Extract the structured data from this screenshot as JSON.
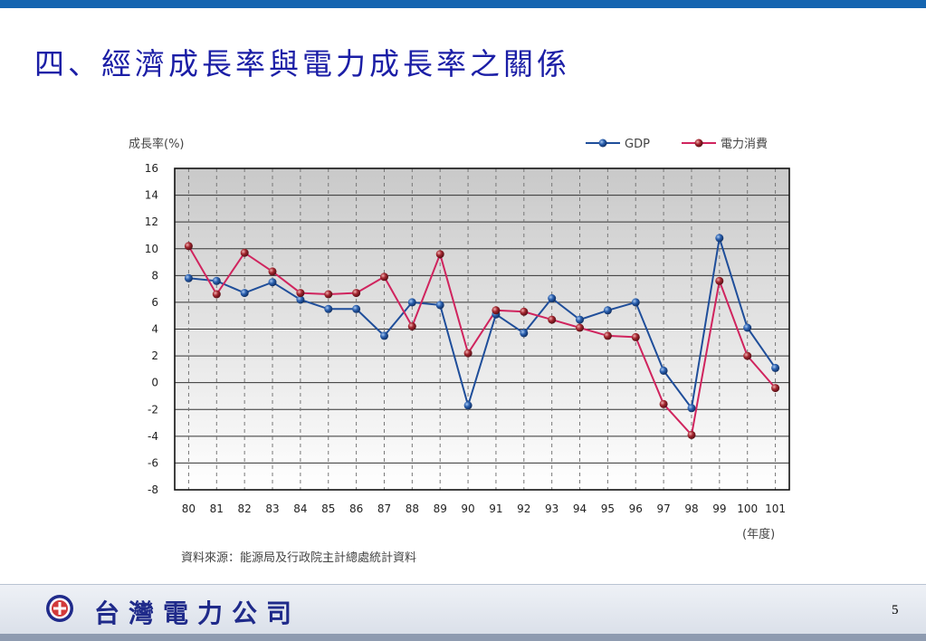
{
  "slide": {
    "title": "四、經濟成長率與電力成長率之關係",
    "page_number": "5",
    "company_name": "台灣電力公司"
  },
  "colors": {
    "gdp": "#1f4e9a",
    "electricity": "#d0245e",
    "title": "#1b1ea6",
    "plot_background_top": "#c9c9c9",
    "plot_background_bottom": "#ffffff"
  },
  "chart_data": {
    "type": "line",
    "ylabel": "成長率(%)",
    "xlabel": "(年度)",
    "source_note": "資料來源：能源局及行政院主計總處統計資料",
    "categories": [
      "80",
      "81",
      "82",
      "83",
      "84",
      "85",
      "86",
      "87",
      "88",
      "89",
      "90",
      "91",
      "92",
      "93",
      "94",
      "95",
      "96",
      "97",
      "98",
      "99",
      "100",
      "101"
    ],
    "ylim": [
      -8,
      16
    ],
    "yticks": [
      -8,
      -6,
      -4,
      -2,
      0,
      2,
      4,
      6,
      8,
      10,
      12,
      14,
      16
    ],
    "grid": true,
    "legend_position": "top-right",
    "series": [
      {
        "name": "GDP",
        "color": "#1f4e9a",
        "values": [
          7.8,
          7.6,
          6.7,
          7.5,
          6.2,
          5.5,
          5.5,
          3.5,
          6.0,
          5.8,
          -1.7,
          5.1,
          3.7,
          6.3,
          4.7,
          5.4,
          6.0,
          0.9,
          -1.9,
          10.8,
          4.1,
          1.1
        ]
      },
      {
        "name": "電力消費",
        "color": "#d0245e",
        "values": [
          10.2,
          6.6,
          9.7,
          8.3,
          6.7,
          6.6,
          6.7,
          7.9,
          4.2,
          9.6,
          2.2,
          5.4,
          5.3,
          4.7,
          4.1,
          3.5,
          3.4,
          -1.6,
          -3.9,
          7.6,
          2.0,
          -0.4
        ]
      }
    ]
  }
}
